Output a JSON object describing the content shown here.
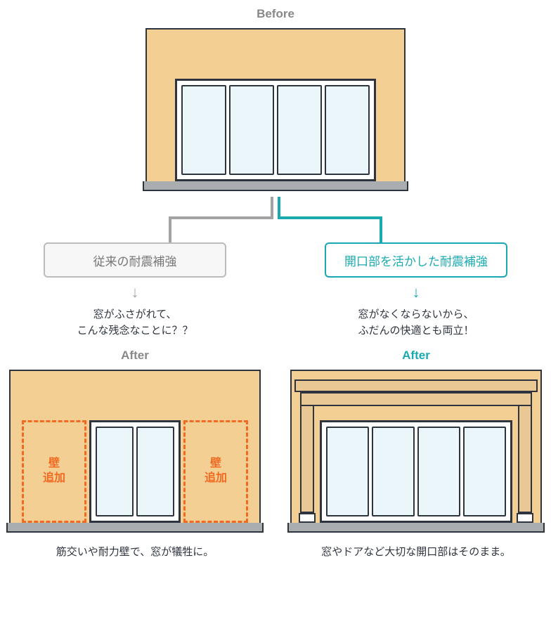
{
  "before": {
    "title": "Before"
  },
  "labels": {
    "conventional": "従来の耐震補強",
    "opening": "開口部を活かした耐震補強"
  },
  "descriptions": {
    "left1": "窓がふさがれて、",
    "left2": "こんな残念なことに？？",
    "right1": "窓がなくならないから、",
    "right2": "ふだんの快適とも両立！"
  },
  "after": {
    "left_title": "After",
    "right_title": "After"
  },
  "wall_add": {
    "label": "壁\n追加"
  },
  "captions": {
    "left": "筋交いや耐力壁で、窓が犠牲に。",
    "right": "窓やドアなど大切な開口部はそのまま。"
  },
  "colors": {
    "wall": "#f3cf94",
    "outline": "#2e343f",
    "pane": "#eaf6fa",
    "base": "#a9adb0",
    "gray": "#a3a3a3",
    "teal": "#19aab1",
    "orange": "#f26a21",
    "rein": "#e9c894"
  }
}
